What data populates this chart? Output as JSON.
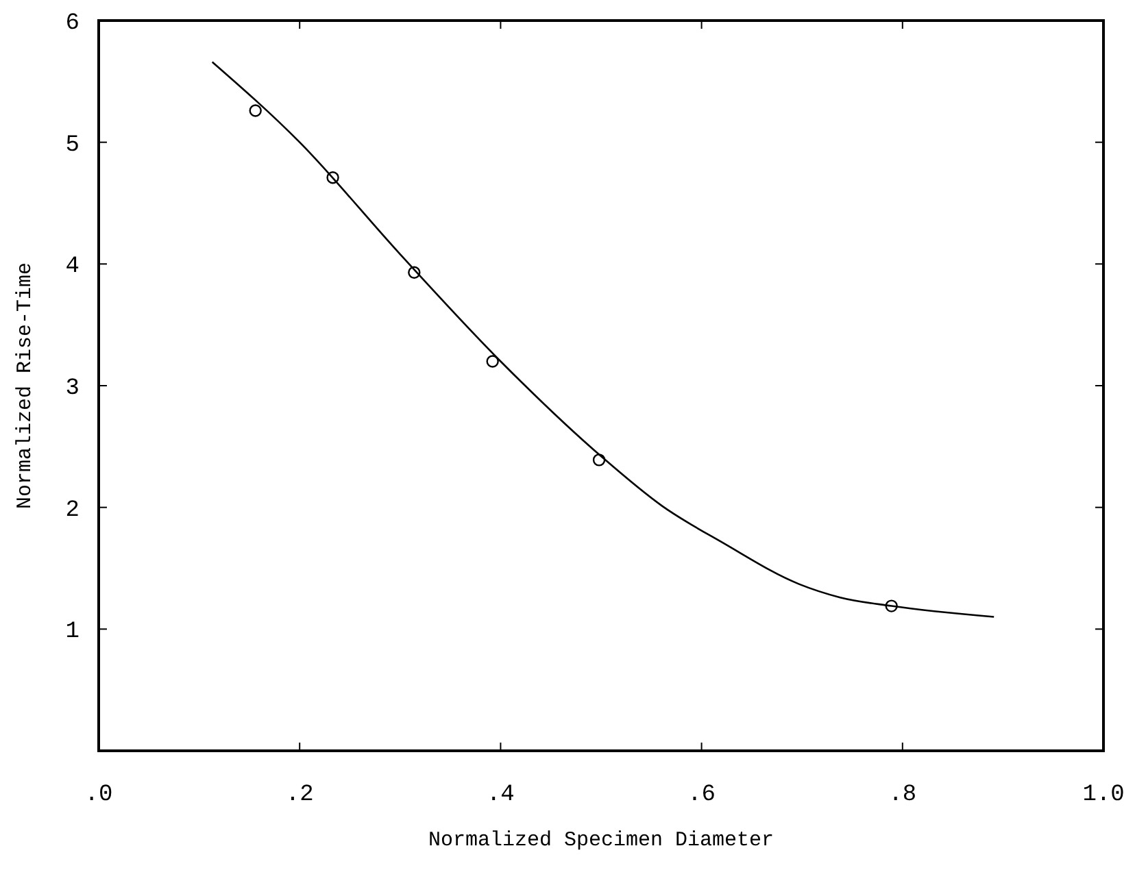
{
  "chart_data": {
    "type": "scatter",
    "xlabel": "Normalized Specimen Diameter",
    "ylabel": "Normalized Rise-Time",
    "xlim": [
      0,
      1
    ],
    "ylim": [
      0,
      6
    ],
    "xticks": [
      {
        "value": 0,
        "label": ".0"
      },
      {
        "value": 0.2,
        "label": ".2"
      },
      {
        "value": 0.4,
        "label": ".4"
      },
      {
        "value": 0.6,
        "label": ".6"
      },
      {
        "value": 0.8,
        "label": ".8"
      },
      {
        "value": 1,
        "label": "1.0"
      }
    ],
    "yticks": [
      1,
      2,
      3,
      4,
      5,
      6
    ],
    "grid": false,
    "marker": "circle",
    "series": [
      {
        "color": "#000000",
        "x": [
          0.156,
          0.233,
          0.314,
          0.392,
          0.498,
          0.789
        ],
        "values": [
          5.26,
          4.71,
          3.93,
          3.2,
          2.39,
          1.19
        ]
      },
      {
        "type": "line",
        "color": "#000000",
        "marker": "none",
        "line_style": "solid",
        "x": [
          0.113,
          0.2,
          0.3,
          0.4,
          0.5,
          0.561,
          0.621,
          0.697,
          0.738,
          0.789,
          0.891
        ],
        "values": [
          5.66,
          5.0,
          4.08,
          3.2,
          2.42,
          2.01,
          1.71,
          1.37,
          1.26,
          1.19,
          1.1
        ]
      }
    ]
  }
}
